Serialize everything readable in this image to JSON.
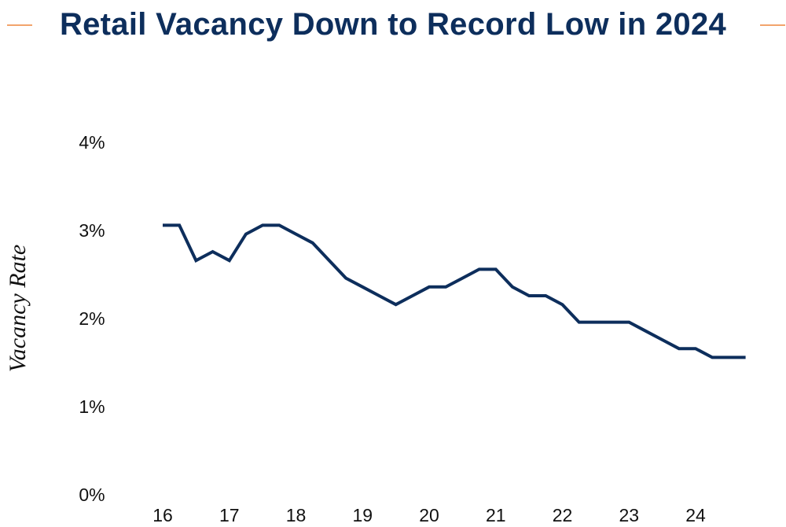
{
  "chart_data": {
    "type": "line",
    "title": "Retail Vacancy Down to Record Low in 2024",
    "xlabel": "",
    "ylabel": "Vacancy Rate",
    "x_tick_labels": [
      "16",
      "17",
      "18",
      "19",
      "20",
      "21",
      "22",
      "23",
      "24"
    ],
    "y_tick_labels": [
      "0%",
      "1%",
      "2%",
      "3%",
      "4%"
    ],
    "ylim": [
      0,
      4
    ],
    "grid": false,
    "legend": "none",
    "line_color": "#0d2e5c",
    "series": [
      {
        "x": [
          2016.0,
          2016.25,
          2016.5,
          2016.75,
          2017.0,
          2017.25,
          2017.5,
          2017.75,
          2018.0,
          2018.25,
          2018.5,
          2018.75,
          2019.0,
          2019.25,
          2019.5,
          2019.75,
          2020.0,
          2020.25,
          2020.5,
          2020.75,
          2021.0,
          2021.25,
          2021.5,
          2021.75,
          2022.0,
          2022.25,
          2022.5,
          2022.75,
          2023.0,
          2023.25,
          2023.5,
          2023.75,
          2024.0,
          2024.25,
          2024.5,
          2024.75
        ],
        "values": [
          3.05,
          3.05,
          2.65,
          2.75,
          2.65,
          2.95,
          3.05,
          3.05,
          2.95,
          2.85,
          2.65,
          2.45,
          2.35,
          2.25,
          2.15,
          2.25,
          2.35,
          2.35,
          2.45,
          2.55,
          2.55,
          2.35,
          2.25,
          2.25,
          2.15,
          1.95,
          1.95,
          1.95,
          1.95,
          1.85,
          1.75,
          1.65,
          1.65,
          1.55,
          1.55,
          1.55
        ]
      }
    ]
  },
  "colors": {
    "title": "#0d2e5c",
    "accent_dash": "#f2a46c",
    "tick_text": "#111111"
  }
}
